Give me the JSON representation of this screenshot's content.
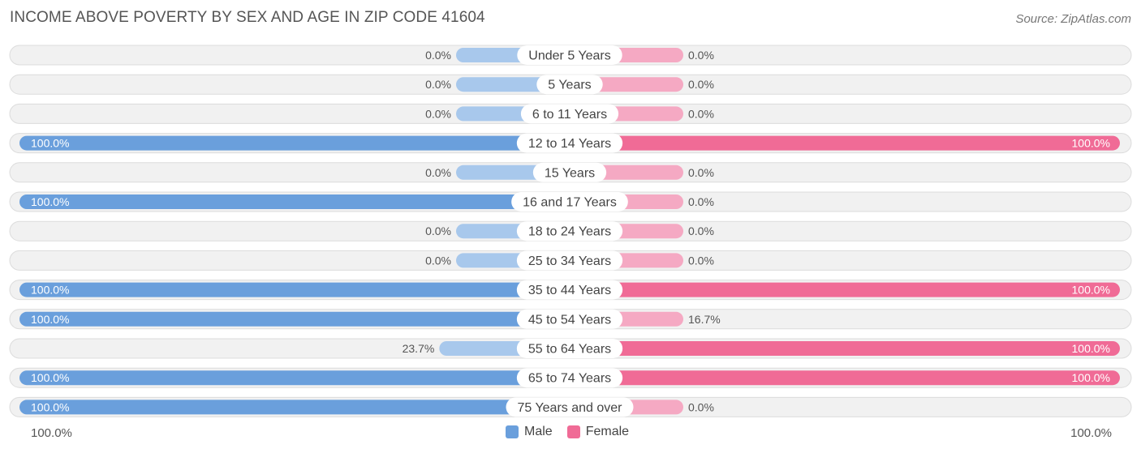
{
  "title": "INCOME ABOVE POVERTY BY SEX AND AGE IN ZIP CODE 41604",
  "source": "Source: ZipAtlas.com",
  "colors": {
    "male_full": "#6a9fdc",
    "male_light": "#a8c8ec",
    "female_full": "#f06b96",
    "female_light": "#f5a9c3",
    "row_bg": "#f1f1f1",
    "row_border": "#dcdcdc"
  },
  "axis": {
    "left_label": "100.0%",
    "right_label": "100.0%"
  },
  "legend": {
    "male": "Male",
    "female": "Female"
  },
  "chart_data": {
    "type": "bar",
    "orientation": "horizontal-diverging",
    "xlim": [
      0,
      100
    ],
    "categories": [
      "Under 5 Years",
      "5 Years",
      "6 to 11 Years",
      "12 to 14 Years",
      "15 Years",
      "16 and 17 Years",
      "18 to 24 Years",
      "25 to 34 Years",
      "35 to 44 Years",
      "45 to 54 Years",
      "55 to 64 Years",
      "65 to 74 Years",
      "75 Years and over"
    ],
    "series": [
      {
        "name": "Male",
        "values": [
          0,
          0,
          0,
          100,
          0,
          100,
          0,
          0,
          100,
          100,
          23.7,
          100,
          100
        ],
        "labels": [
          "0.0%",
          "0.0%",
          "0.0%",
          "100.0%",
          "0.0%",
          "100.0%",
          "0.0%",
          "0.0%",
          "100.0%",
          "100.0%",
          "23.7%",
          "100.0%",
          "100.0%"
        ]
      },
      {
        "name": "Female",
        "values": [
          0,
          0,
          0,
          100,
          0,
          0,
          0,
          0,
          100,
          16.7,
          100,
          100,
          0
        ],
        "labels": [
          "0.0%",
          "0.0%",
          "0.0%",
          "100.0%",
          "0.0%",
          "0.0%",
          "0.0%",
          "0.0%",
          "100.0%",
          "16.7%",
          "100.0%",
          "100.0%",
          "0.0%"
        ]
      }
    ],
    "legend_position": "bottom-center"
  }
}
